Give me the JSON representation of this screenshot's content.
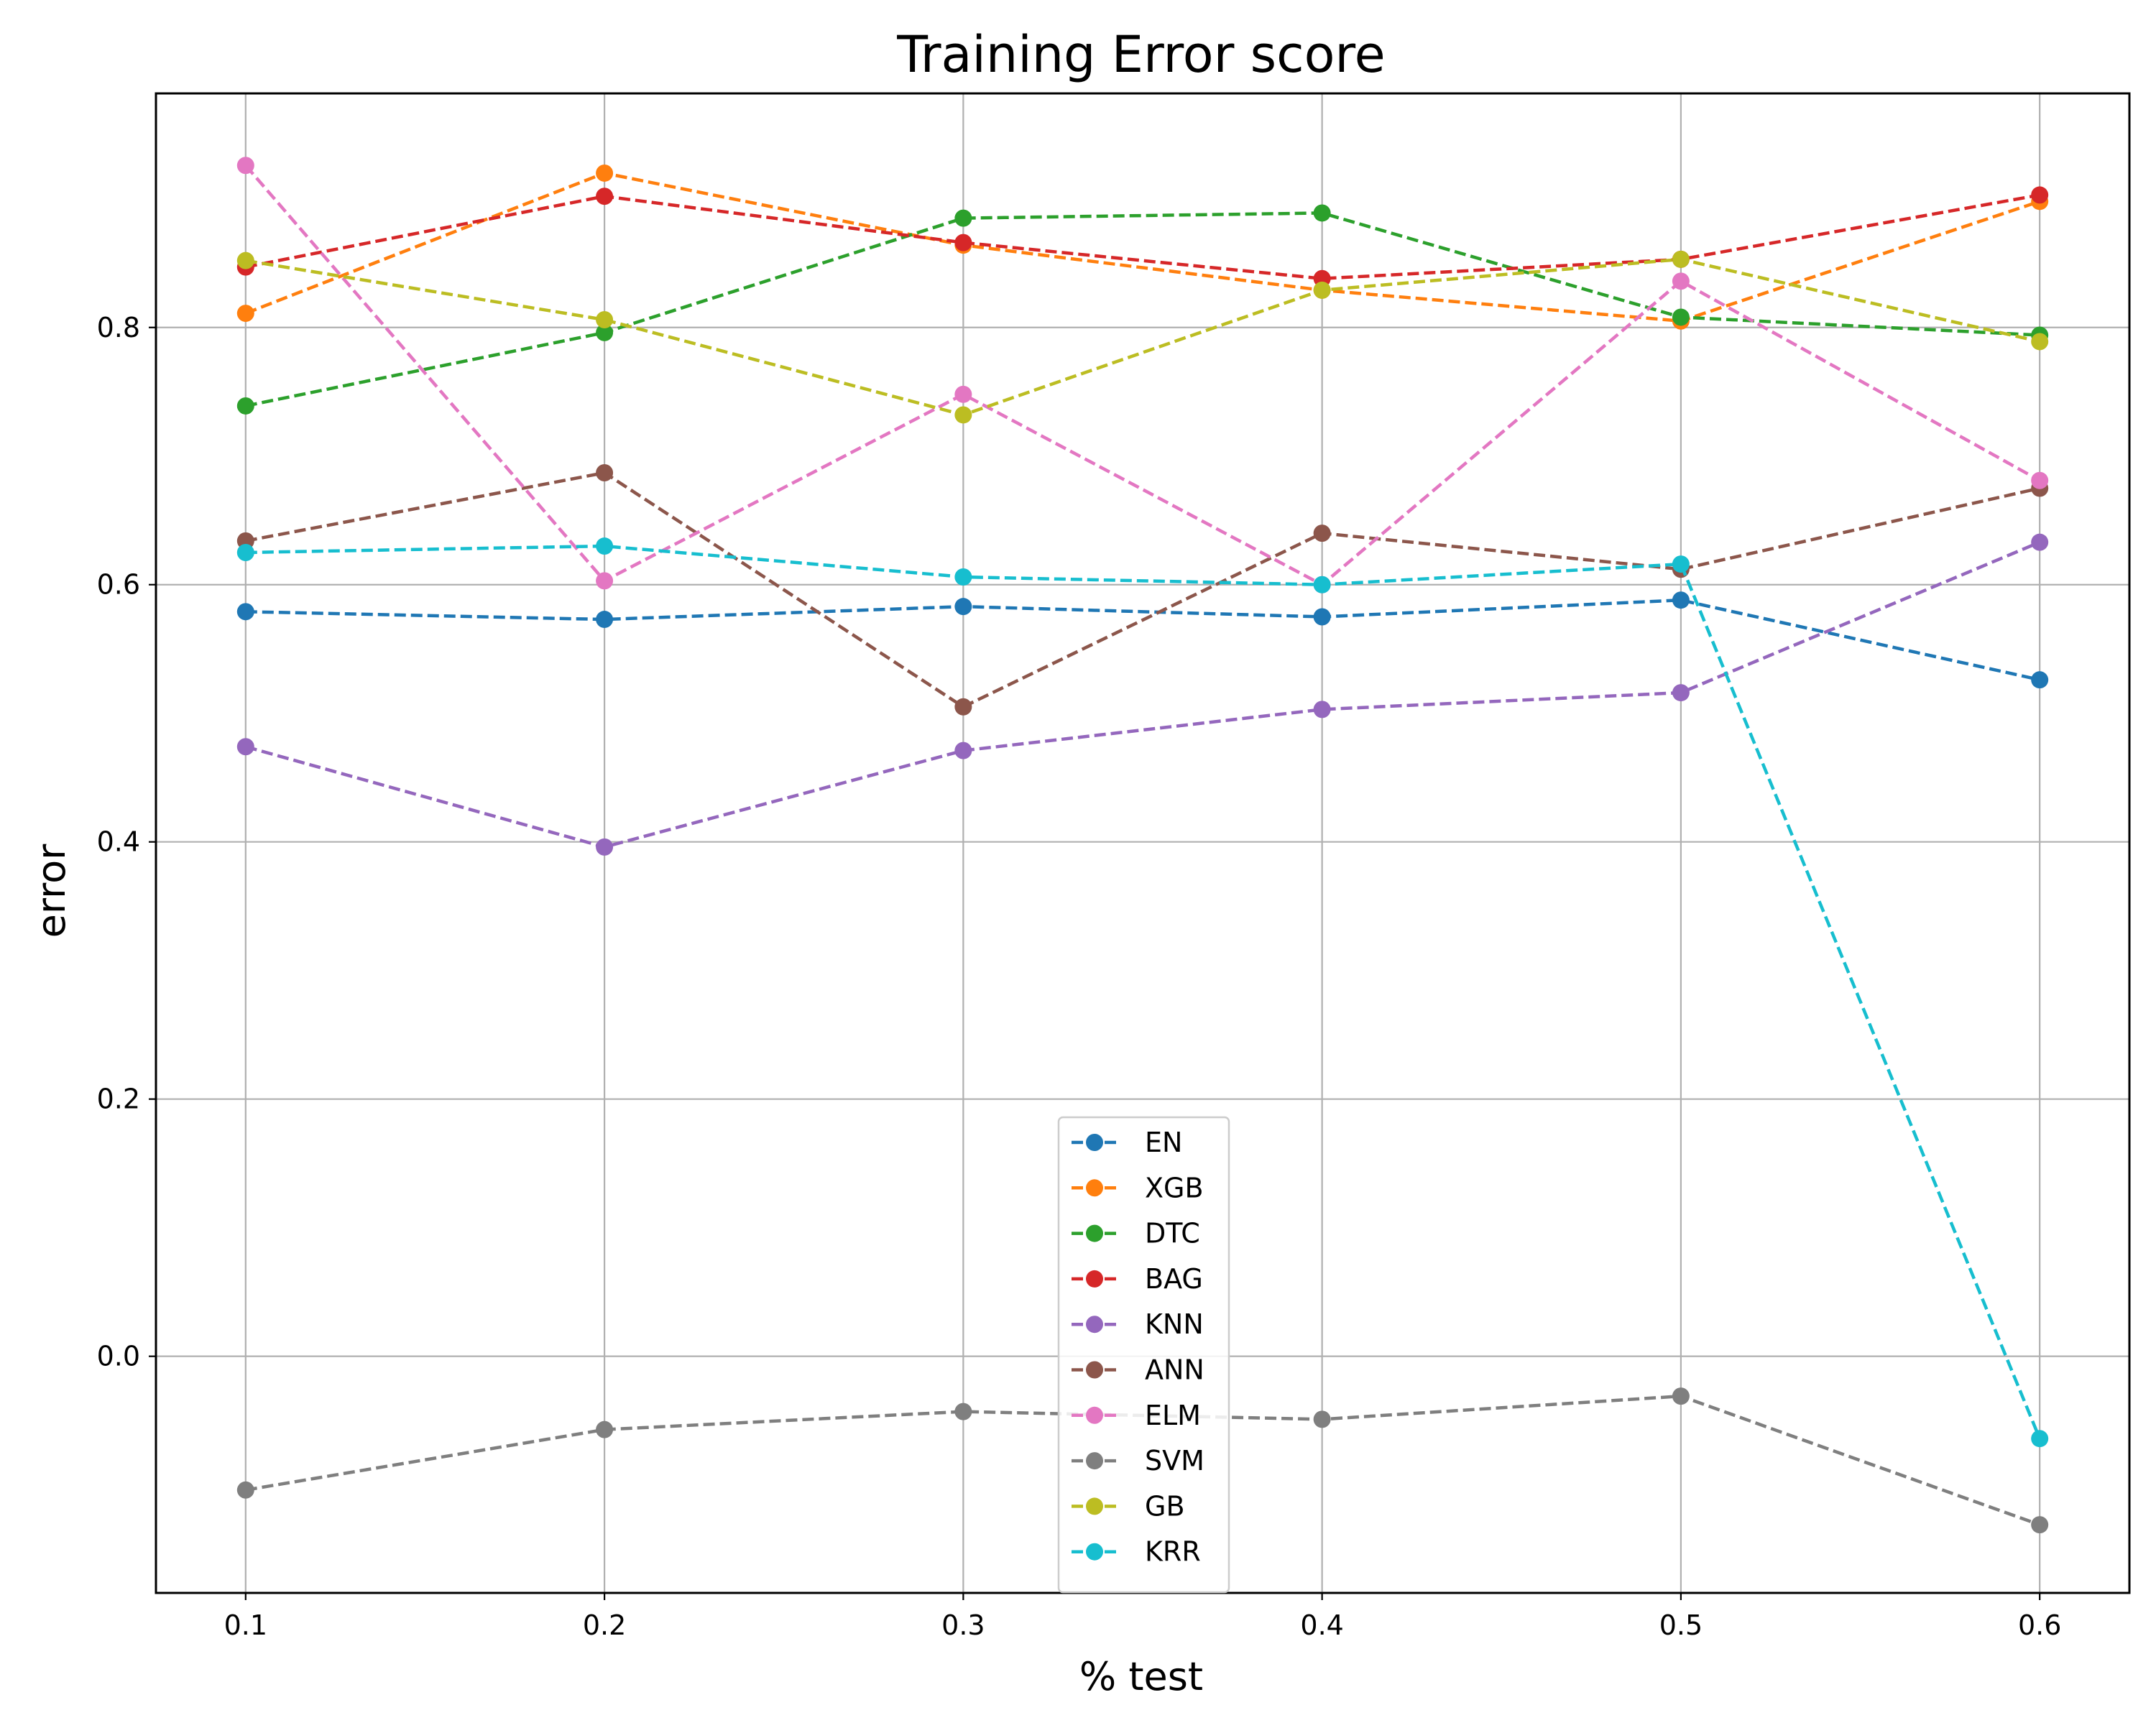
{
  "chart_data": {
    "type": "line",
    "title": "Training Error score",
    "xlabel": "% test",
    "ylabel": "error",
    "x": [
      0.1,
      0.2,
      0.3,
      0.4,
      0.5,
      0.6
    ],
    "xlim": [
      0.075,
      0.625
    ],
    "ylim": [
      -0.184,
      0.982
    ],
    "xticks": [
      "0.1",
      "0.2",
      "0.3",
      "0.4",
      "0.5",
      "0.6"
    ],
    "yticks": [
      "0.0",
      "0.2",
      "0.4",
      "0.6",
      "0.8"
    ],
    "ytick_values": [
      0.0,
      0.2,
      0.4,
      0.6,
      0.8
    ],
    "grid": true,
    "line_style": "dashed with circle markers",
    "legend_position": "lower center",
    "series": [
      {
        "name": "EN",
        "color": "#1f77b4",
        "values": [
          0.579,
          0.573,
          0.583,
          0.575,
          0.588,
          0.526
        ]
      },
      {
        "name": "XGB",
        "color": "#ff7f0e",
        "values": [
          0.811,
          0.92,
          0.864,
          0.829,
          0.805,
          0.898
        ]
      },
      {
        "name": "DTC",
        "color": "#2ca02c",
        "values": [
          0.739,
          0.796,
          0.885,
          0.889,
          0.808,
          0.794
        ]
      },
      {
        "name": "BAG",
        "color": "#d62728",
        "values": [
          0.847,
          0.902,
          0.866,
          0.838,
          0.853,
          0.903
        ]
      },
      {
        "name": "KNN",
        "color": "#9467bd",
        "values": [
          0.474,
          0.396,
          0.471,
          0.503,
          0.516,
          0.633
        ]
      },
      {
        "name": "ANN",
        "color": "#8c564b",
        "values": [
          0.634,
          0.687,
          0.505,
          0.64,
          0.612,
          0.675
        ]
      },
      {
        "name": "ELM",
        "color": "#e377c2",
        "values": [
          0.926,
          0.603,
          0.748,
          0.6,
          0.836,
          0.681
        ]
      },
      {
        "name": "SVM",
        "color": "#7f7f7f",
        "values": [
          -0.104,
          -0.057,
          -0.043,
          -0.049,
          -0.031,
          -0.131
        ]
      },
      {
        "name": "GB",
        "color": "#bcbd22",
        "values": [
          0.852,
          0.806,
          0.732,
          0.829,
          0.853,
          0.789
        ]
      },
      {
        "name": "KRR",
        "color": "#17becf",
        "values": [
          0.625,
          0.63,
          0.606,
          0.6,
          0.616,
          -0.064
        ]
      }
    ]
  }
}
